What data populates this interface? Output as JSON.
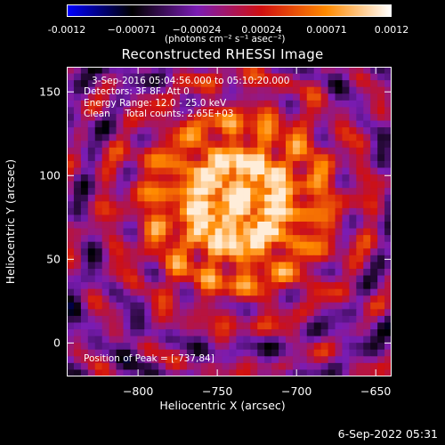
{
  "chart_data": {
    "type": "heatmap",
    "title": "Reconstructed RHESSI Image",
    "xlabel": "Heliocentric X (arcsec)",
    "ylabel": "Heliocentric Y (arcsec)",
    "xlim": [
      -845,
      -640
    ],
    "ylim": [
      -20,
      165
    ],
    "x_ticks": [
      -800,
      -750,
      -700,
      -650
    ],
    "y_ticks": [
      0,
      50,
      100,
      150
    ],
    "colorbar": {
      "range": [
        -0.0012,
        0.0012
      ],
      "ticks": [
        "-0.0012",
        "−0.00071",
        "−0.00024",
        "0.00024",
        "0.00071",
        "0.0012"
      ],
      "units": "(photons cm⁻² s⁻¹ asec⁻²)",
      "colormap": [
        "#0000ff",
        "#000000",
        "#7a1cb4",
        "#d01010",
        "#ff8a00",
        "#ffffff"
      ]
    },
    "annotations": {
      "time_range": "3-Sep-2016 05:04:56.000 to 05:10:20.000",
      "detectors": "Detectors: 3F 8F, Att 0",
      "energy": "Energy Range: 12.0 - 25.0 keV",
      "clean": "Clean     Total counts: 2.65E+03",
      "peak": "Position of Peak = [-737,84]"
    },
    "peak_position": [
      -737,
      84
    ]
  },
  "footer": {
    "timestamp": "6-Sep-2022 05:31"
  }
}
